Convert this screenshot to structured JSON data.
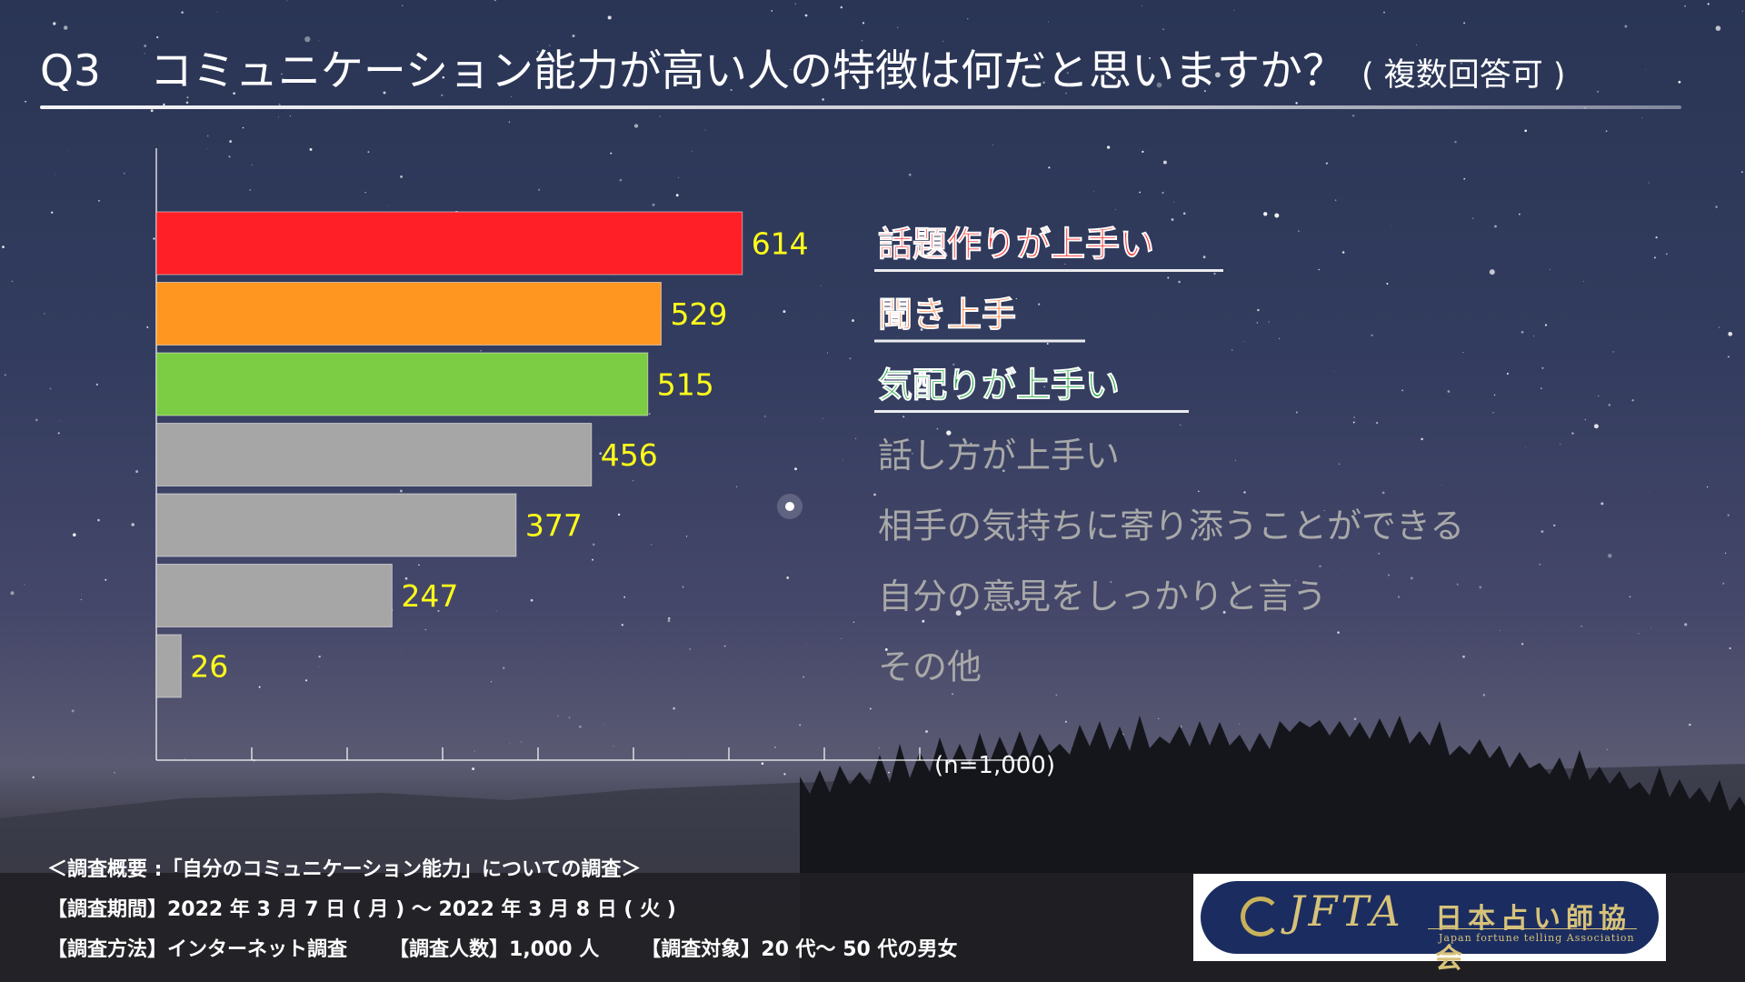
{
  "header": {
    "question_no": "Q3",
    "question": "コミュニケーション能力が高い人の特徴は何だと思いますか？",
    "note": "( 複数回答可 )"
  },
  "chart_data": {
    "type": "bar",
    "orientation": "horizontal",
    "categories": [
      "話題作りが上手い",
      "聞き上手",
      "気配りが上手い",
      "話し方が上手い",
      "相手の気持ちに寄り添うことができる",
      "自分の意見をしっかりと言う",
      "その他"
    ],
    "values": [
      614,
      529,
      515,
      456,
      377,
      247,
      26
    ],
    "colors": [
      "#ff1f26",
      "#ff9620",
      "#7ccc44",
      "#a6a6a6",
      "#a6a6a6",
      "#a6a6a6",
      "#a6a6a6"
    ],
    "label_colors": [
      "#ff2a2a",
      "#ff7a3a",
      "#22aa44",
      "#a8a8a8",
      "#a8a8a8",
      "#a8a8a8",
      "#a8a8a8"
    ],
    "highlight_top": 3,
    "xlim": [
      0,
      800
    ],
    "grid": false,
    "sample_note": "(n=1,000)"
  },
  "footer": {
    "overview": "＜調査概要 :「自分のコミュニケーション能力」についての調査＞",
    "period": "【調査期間】2022 年 3 月 7 日 ( 月 ) ～ 2022 年 3 月 8 日 ( 火 )",
    "method": "【調査方法】インターネット調査",
    "count": "【調査人数】1,000 人",
    "target": "【調査対象】20 代～ 50 代の男女"
  },
  "logo": {
    "abbr": "JFTA",
    "name_jp": "日本占い師協会",
    "name_en": "Japan fortune telling Association"
  }
}
